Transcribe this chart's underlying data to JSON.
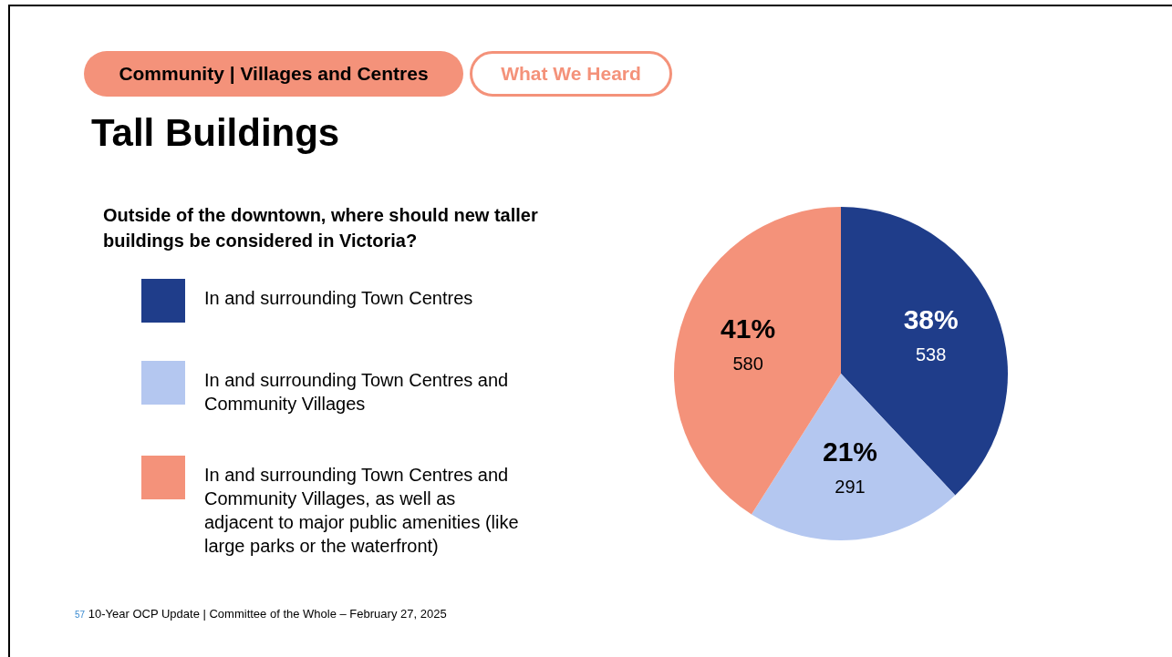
{
  "chart_data": {
    "type": "pie",
    "title": "Tall Buildings",
    "subtitle": "Outside of the downtown, where should new taller buildings be considered in Victoria?",
    "annotations": [
      "Community | Villages and Centres",
      "What We Heard",
      "57 10-Year OCP Update | Committee of the Whole – February 27, 2025"
    ],
    "categories": [
      "In and surrounding Town Centres",
      "In and surrounding Town Centres and Community Villages",
      "In and surrounding Town Centres and Community Villages, as well as adjacent to major public amenities (like large parks or the waterfront)"
    ],
    "values": [
      38,
      21,
      41
    ],
    "value_labels": [
      "38%\n538",
      "21%\n291",
      "41%\n580"
    ],
    "colors": [
      "#1f3d8a",
      "#b4c7f0",
      "#f4927a"
    ],
    "legend": "left"
  }
}
